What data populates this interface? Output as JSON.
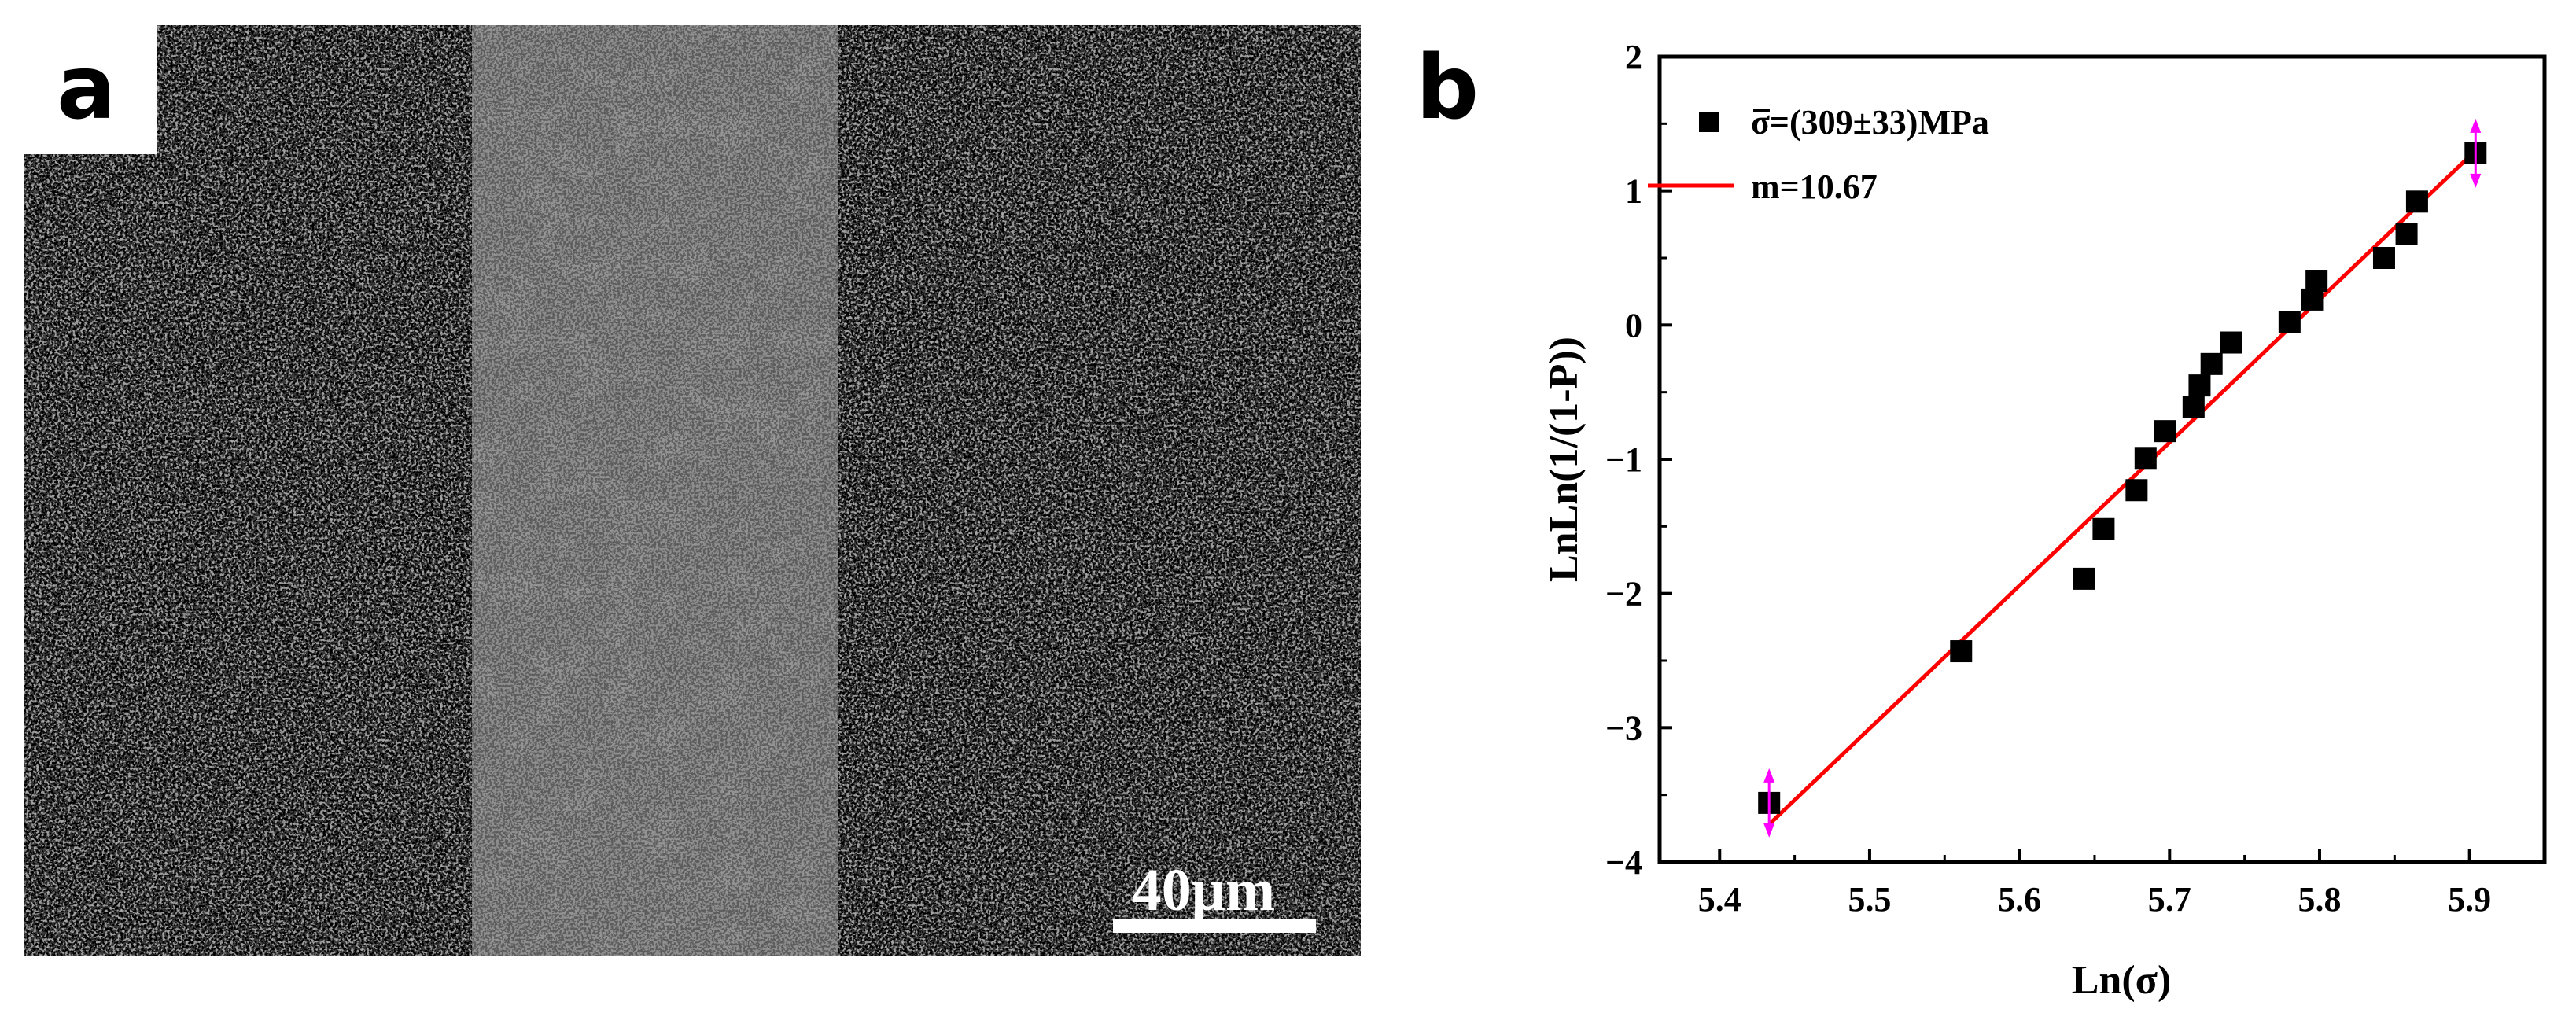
{
  "panel_a": {
    "label": "a",
    "scale_bar_label": "40μm"
  },
  "panel_b": {
    "label": "b"
  },
  "chart_data": {
    "type": "scatter",
    "xlabel": "Ln(σ)",
    "ylabel": "LnLn(1/(1-P))",
    "xlim": [
      5.36,
      5.95
    ],
    "ylim": [
      -4,
      2
    ],
    "xticks": [
      5.4,
      5.5,
      5.6,
      5.7,
      5.8,
      5.9
    ],
    "yticks": [
      -4,
      -3,
      -2,
      -1,
      0,
      1,
      2
    ],
    "legend_position": "top-left",
    "grid": false,
    "series": [
      {
        "name": "σ=(309±33)MPa",
        "kind": "scatter",
        "marker": "square",
        "color": "#000000",
        "x": [
          5.433,
          5.561,
          5.643,
          5.656,
          5.678,
          5.684,
          5.697,
          5.716,
          5.72,
          5.728,
          5.741,
          5.78,
          5.795,
          5.798,
          5.843,
          5.858,
          5.865,
          5.904
        ],
        "y": [
          -3.56,
          -2.43,
          -1.89,
          -1.52,
          -1.23,
          -0.99,
          -0.79,
          -0.61,
          -0.45,
          -0.29,
          -0.13,
          0.02,
          0.19,
          0.33,
          0.5,
          0.68,
          0.92,
          1.28
        ]
      },
      {
        "name": "m=10.67",
        "kind": "line",
        "color": "#ff0000",
        "x": [
          5.433,
          5.904
        ],
        "y": [
          -3.72,
          1.3
        ]
      }
    ],
    "endpoint_arrows": {
      "color": "#ff00ff",
      "x": [
        5.433,
        5.904
      ],
      "y": [
        -3.56,
        1.28
      ]
    }
  }
}
